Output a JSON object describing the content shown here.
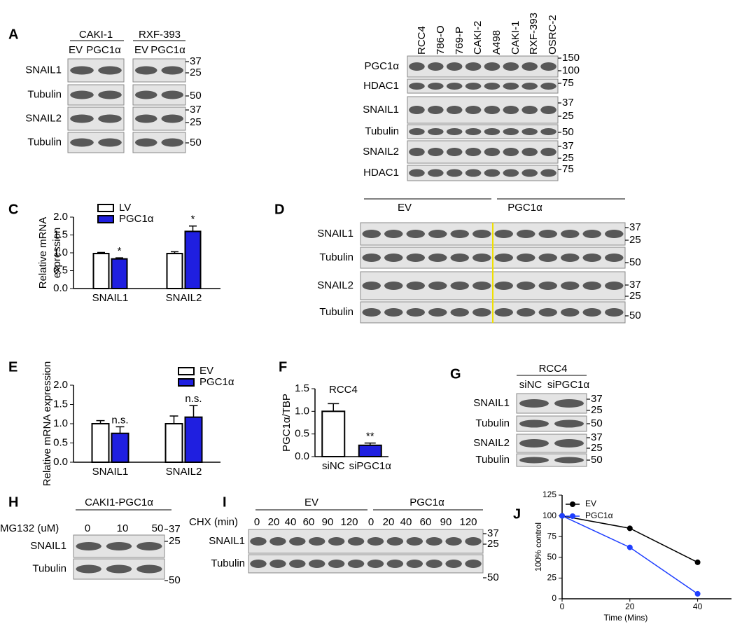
{
  "chart_data": [
    {
      "type": "bar",
      "panel": "C",
      "ylabel": [
        "Relative mRNA",
        "expression"
      ],
      "categories": [
        "SNAIL1",
        "SNAIL2"
      ],
      "series": [
        {
          "name": "LV",
          "color": "#ffffff",
          "values": [
            0.98,
            0.98
          ],
          "errors": [
            0.03,
            0.05
          ]
        },
        {
          "name": "PGC1α",
          "color": "#1f1fe0",
          "values": [
            0.83,
            1.6
          ],
          "errors": [
            0.03,
            0.15
          ]
        }
      ],
      "annotations": [
        {
          "text": "*",
          "category": "SNAIL1",
          "series": "PGC1α"
        },
        {
          "text": "*",
          "category": "SNAIL2",
          "series": "PGC1α"
        }
      ],
      "ylim": [
        0,
        2
      ],
      "yticks": [
        {
          "value": 0,
          "label": "0.0"
        },
        0.5,
        {
          "value": 1,
          "label": "1.0"
        },
        1.5,
        {
          "value": 2,
          "label": "2.0"
        }
      ]
    },
    {
      "type": "bar",
      "panel": "E",
      "ylabel": [
        "Relative mRNA expression"
      ],
      "categories": [
        "SNAIL1",
        "SNAIL2"
      ],
      "series": [
        {
          "name": "EV",
          "color": "#ffffff",
          "values": [
            1.0,
            1.0
          ],
          "errors": [
            0.08,
            0.2
          ]
        },
        {
          "name": "PGC1α",
          "color": "#1f1fe0",
          "values": [
            0.75,
            1.17
          ],
          "errors": [
            0.17,
            0.3
          ]
        }
      ],
      "annotations": [
        {
          "text": "n.s.",
          "category": "SNAIL1",
          "series": "PGC1α"
        },
        {
          "text": "n.s.",
          "category": "SNAIL2",
          "series": "PGC1α"
        }
      ],
      "ylim": [
        0,
        2
      ],
      "yticks": [
        {
          "value": 0,
          "label": "0.0"
        },
        0.5,
        {
          "value": 1,
          "label": "1.0"
        },
        1.5,
        {
          "value": 2,
          "label": "2.0"
        }
      ]
    },
    {
      "type": "bar",
      "panel": "F",
      "title": "RCC4",
      "ylabel": [
        "PGC1α/TBP"
      ],
      "categories": [
        "siNC",
        "siPGC1α"
      ],
      "values": [
        1.0,
        0.25
      ],
      "errors": [
        0.17,
        0.05
      ],
      "colors": [
        "#ffffff",
        "#1f1fe0"
      ],
      "annotations": [
        {
          "text": "**",
          "category": "siPGC1α"
        }
      ],
      "ylim": [
        0,
        1.5
      ],
      "yticks": [
        {
          "value": 0,
          "label": "0.0"
        },
        0.5,
        {
          "value": 1,
          "label": "1.0"
        },
        1.5
      ]
    },
    {
      "type": "line",
      "panel": "J",
      "ylabel": [
        "100% control"
      ],
      "xlabel": "Time (Mins)",
      "x": [
        0,
        20,
        40
      ],
      "series": [
        {
          "name": "EV",
          "color": "#000000",
          "values": [
            100,
            85,
            44
          ]
        },
        {
          "name": "PGC1α",
          "color": "#1f3fff",
          "values": [
            100,
            62,
            6
          ]
        }
      ],
      "xlim": [
        0,
        50
      ],
      "xticks": [
        0,
        20,
        40
      ],
      "ylim": [
        0,
        125
      ],
      "yticks": [
        0,
        25,
        50,
        75,
        100,
        125
      ]
    }
  ],
  "blots": [
    {
      "panel": "A",
      "groups": [
        "CAKI-1",
        "RXF-393"
      ],
      "lanes": [
        "EV",
        "PGC1α",
        "EV",
        "PGC1α"
      ],
      "rows": [
        "SNAIL1",
        "Tubulin",
        "SNAIL2",
        "Tubulin"
      ],
      "markers": [
        "37",
        "25",
        "50",
        "37",
        "25",
        "50"
      ]
    },
    {
      "lanes": [
        "RCC4",
        "786-O",
        "769-P",
        "CAKI-2",
        "A498",
        "CAKI-1",
        "RXF-393",
        "OSRC-2"
      ],
      "rows": [
        "PGC1α",
        "HDAC1",
        "SNAIL1",
        "Tubulin",
        "SNAIL2",
        "HDAC1"
      ],
      "markers": [
        "150",
        "100",
        "75",
        "37",
        "25",
        "50",
        "37",
        "25",
        "75"
      ]
    },
    {
      "panel": "D",
      "groups": [
        "EV",
        "PGC1α"
      ],
      "rows": [
        "SNAIL1",
        "Tubulin",
        "SNAIL2",
        "Tubulin"
      ],
      "markers": [
        "37",
        "25",
        "50",
        "37",
        "25",
        "50"
      ]
    },
    {
      "panel": "G",
      "groups": [
        "RCC4"
      ],
      "lanes": [
        "siNC",
        "siPGC1α"
      ],
      "rows": [
        "SNAIL1",
        "Tubulin",
        "SNAIL2",
        "Tubulin"
      ],
      "markers": [
        "37",
        "25",
        "50",
        "37",
        "25",
        "50"
      ]
    },
    {
      "panel": "H",
      "groups": [
        "CAKI1-PGC1α"
      ],
      "treatment": "MG132 (uM)",
      "lanes": [
        "0",
        "10",
        "50"
      ],
      "rows": [
        "SNAIL1",
        "Tubulin"
      ],
      "markers": [
        "37",
        "25",
        "50"
      ]
    },
    {
      "panel": "I",
      "groups": [
        "EV",
        "PGC1α"
      ],
      "treatment": "CHX (min)",
      "lanes": [
        "0",
        "20",
        "40",
        "60",
        "90",
        "120",
        "0",
        "20",
        "40",
        "60",
        "90",
        "120"
      ],
      "rows": [
        "SNAIL1",
        "Tubulin"
      ],
      "markers": [
        "37",
        "25",
        "50"
      ]
    }
  ]
}
